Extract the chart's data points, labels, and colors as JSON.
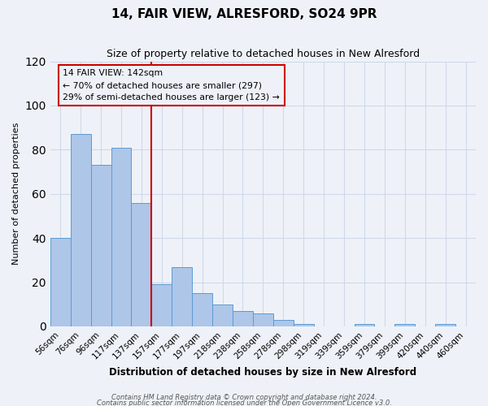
{
  "title": "14, FAIR VIEW, ALRESFORD, SO24 9PR",
  "subtitle": "Size of property relative to detached houses in New Alresford",
  "xlabel": "Distribution of detached houses by size in New Alresford",
  "ylabel": "Number of detached properties",
  "categories": [
    "56sqm",
    "76sqm",
    "96sqm",
    "117sqm",
    "137sqm",
    "157sqm",
    "177sqm",
    "197sqm",
    "218sqm",
    "238sqm",
    "258sqm",
    "278sqm",
    "298sqm",
    "319sqm",
    "339sqm",
    "359sqm",
    "379sqm",
    "399sqm",
    "420sqm",
    "440sqm",
    "460sqm"
  ],
  "values": [
    40,
    87,
    73,
    81,
    56,
    19,
    27,
    15,
    10,
    7,
    6,
    3,
    1,
    0,
    0,
    1,
    0,
    1,
    0,
    1,
    0
  ],
  "bar_color": "#aec6e8",
  "bar_edge_color": "#5b9bd5",
  "ylim": [
    0,
    120
  ],
  "yticks": [
    0,
    20,
    40,
    60,
    80,
    100,
    120
  ],
  "red_line_x": 4.5,
  "annotation_title": "14 FAIR VIEW: 142sqm",
  "annotation_line1": "← 70% of detached houses are smaller (297)",
  "annotation_line2": "29% of semi-detached houses are larger (123) →",
  "annotation_box_color": "#cc0000",
  "footnote1": "Contains HM Land Registry data © Crown copyright and database right 2024.",
  "footnote2": "Contains public sector information licensed under the Open Government Licence v3.0.",
  "grid_color": "#d0d8e8",
  "bg_color": "#eef2f8"
}
